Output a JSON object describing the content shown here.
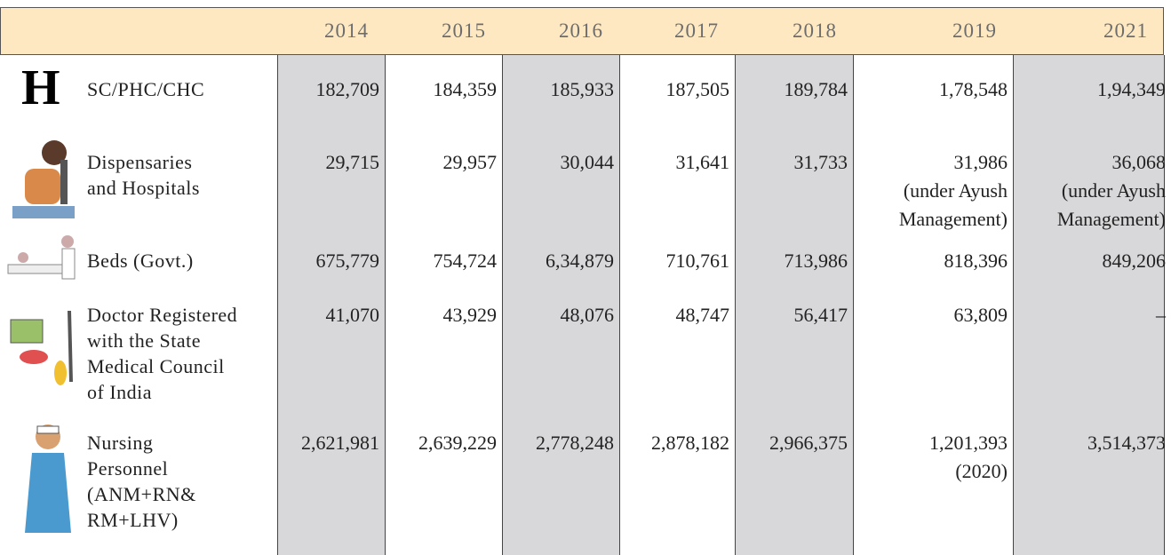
{
  "table": {
    "columns": [
      "2014",
      "2015",
      "2016",
      "2017",
      "2018",
      "2019",
      "2021"
    ],
    "rows": [
      {
        "icon_text": "H",
        "label": [
          "SC/PHC/CHC"
        ],
        "cells": [
          [
            "182,709"
          ],
          [
            "184,359"
          ],
          [
            "185,933"
          ],
          [
            "187,505"
          ],
          [
            "189,784"
          ],
          [
            "1,78,548"
          ],
          [
            "1,94,349"
          ]
        ]
      },
      {
        "label": [
          "Dispensaries",
          "and Hospitals"
        ],
        "cells": [
          [
            "29,715"
          ],
          [
            "29,957"
          ],
          [
            "30,044"
          ],
          [
            "31,641"
          ],
          [
            "31,733"
          ],
          [
            "31,986",
            "(under Ayush",
            "Management)"
          ],
          [
            "36,068",
            "(under Ayush",
            "Management)"
          ]
        ]
      },
      {
        "label": [
          "Beds (Govt.)"
        ],
        "cells": [
          [
            "675,779"
          ],
          [
            "754,724"
          ],
          [
            "6,34,879"
          ],
          [
            "710,761"
          ],
          [
            "713,986"
          ],
          [
            "818,396"
          ],
          [
            "849,206"
          ]
        ]
      },
      {
        "label": [
          "Doctor Registered",
          "with the State",
          "Medical Council",
          "of India"
        ],
        "cells": [
          [
            "41,070"
          ],
          [
            "43,929"
          ],
          [
            "48,076"
          ],
          [
            "48,747"
          ],
          [
            "56,417"
          ],
          [
            "63,809"
          ],
          [
            "–"
          ]
        ]
      },
      {
        "label": [
          "Nursing",
          "Personnel",
          "(ANM+RN&",
          "RM+LHV)"
        ],
        "cells": [
          [
            "2,621,981"
          ],
          [
            "2,639,229"
          ],
          [
            "2,778,248"
          ],
          [
            "2,878,182"
          ],
          [
            "2,966,375"
          ],
          [
            "1,201,393",
            "(2020)"
          ],
          [
            "3,514,373"
          ]
        ]
      }
    ]
  }
}
